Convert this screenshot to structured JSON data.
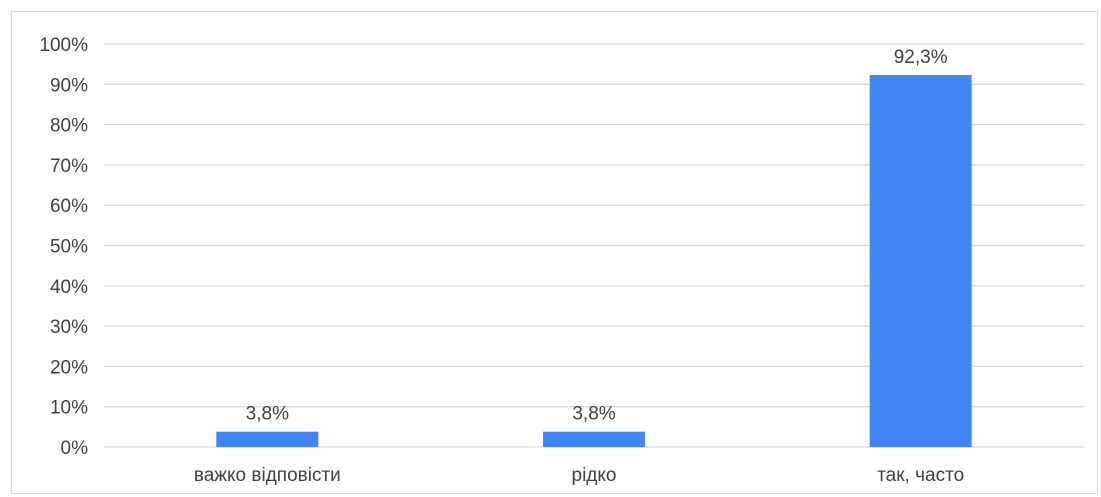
{
  "chart_data": {
    "type": "bar",
    "categories": [
      "важко відповісти",
      "рідко",
      "так, часто"
    ],
    "values": [
      3.8,
      3.8,
      92.3
    ],
    "data_labels": [
      "3,8%",
      "3,8%",
      "92,3%"
    ],
    "title": "",
    "xlabel": "",
    "ylabel": "",
    "ylim": [
      0,
      100
    ],
    "yticks": [
      "0%",
      "10%",
      "20%",
      "30%",
      "40%",
      "50%",
      "60%",
      "70%",
      "80%",
      "90%",
      "100%"
    ],
    "grid": true,
    "legend": "none",
    "colors": {
      "bar": "#4285f4",
      "grid": "#d9d9d9",
      "text": "#404040"
    }
  }
}
